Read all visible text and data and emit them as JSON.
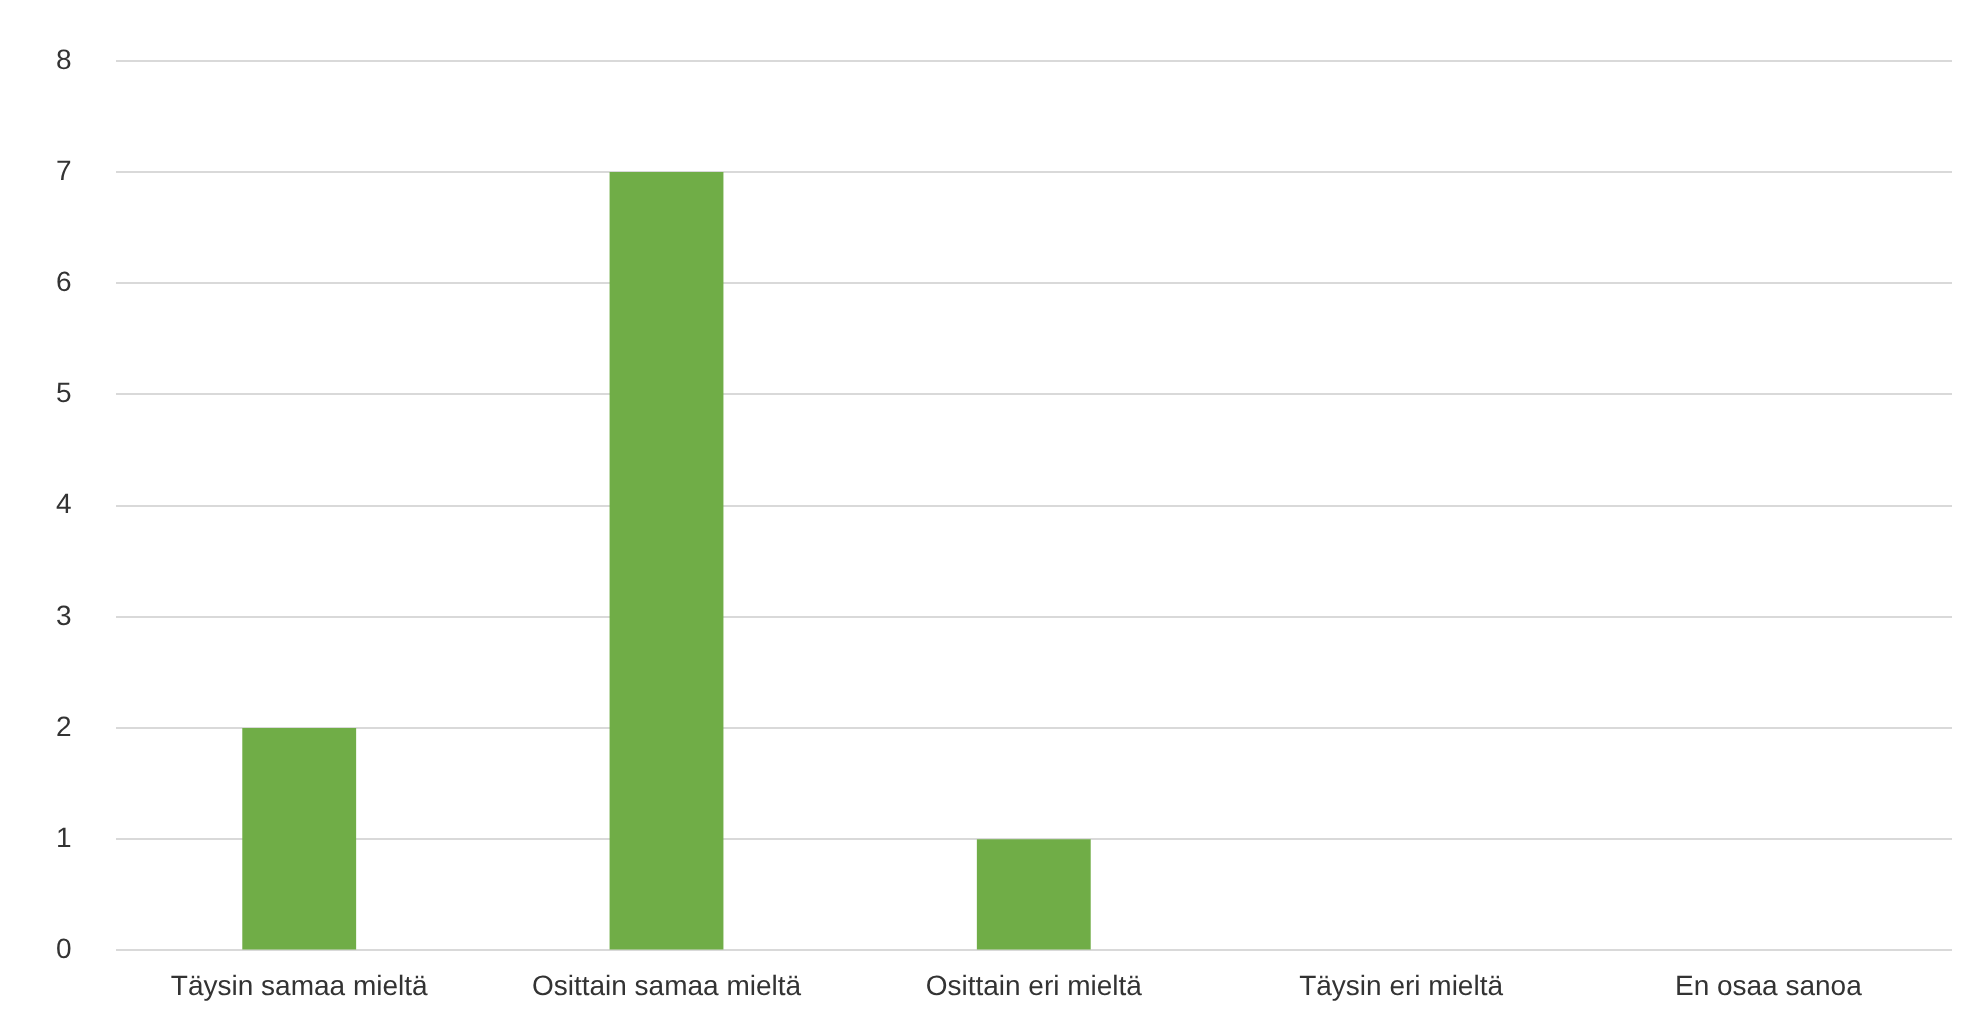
{
  "chart_data": {
    "type": "bar",
    "categories": [
      "Täysin samaa mieltä",
      "Osittain samaa mieltä",
      "Osittain eri mieltä",
      "Täysin eri mieltä",
      "En osaa sanoa"
    ],
    "values": [
      2,
      7,
      1,
      0,
      0
    ],
    "color": "#70ad47",
    "ylim": [
      0,
      8
    ],
    "yticks": [
      0,
      1,
      2,
      3,
      4,
      5,
      6,
      7,
      8
    ],
    "grid": "y"
  }
}
